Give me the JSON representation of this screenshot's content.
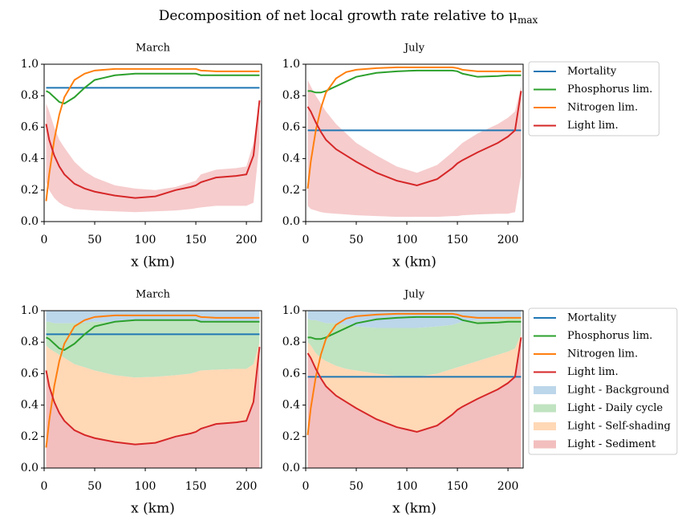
{
  "title": "Decomposition of net local growth rate relative to μ",
  "title_subscript": "max",
  "chart_data": [
    {
      "type": "line",
      "title": "March",
      "xlabel": "x (km)",
      "x": [
        2,
        5,
        10,
        15,
        20,
        30,
        40,
        50,
        70,
        90,
        110,
        130,
        145,
        150,
        155,
        170,
        190,
        200,
        207,
        213
      ],
      "xlim": [
        0,
        215
      ],
      "xticks": [
        0,
        50,
        100,
        150,
        200
      ],
      "ylim": [
        0,
        1
      ],
      "yticks": [
        {
          "value": 0,
          "label": "0.0"
        },
        0.2,
        0.4,
        0.6,
        0.8,
        {
          "value": 1,
          "label": "1.0"
        }
      ],
      "band": {
        "color": "#f6cccd",
        "lower": [
          0.25,
          0.2,
          0.15,
          0.12,
          0.1,
          0.08,
          0.075,
          0.07,
          0.065,
          0.06,
          0.065,
          0.07,
          0.08,
          0.085,
          0.09,
          0.1,
          0.1,
          0.1,
          0.12,
          0.5
        ],
        "upper": [
          0.75,
          0.7,
          0.6,
          0.52,
          0.47,
          0.38,
          0.32,
          0.28,
          0.23,
          0.21,
          0.2,
          0.22,
          0.25,
          0.26,
          0.3,
          0.33,
          0.34,
          0.35,
          0.5,
          0.78
        ]
      },
      "series": [
        {
          "name": "Mortality",
          "color": "#1f77b4",
          "values": [
            0.85,
            0.85,
            0.85,
            0.85,
            0.85,
            0.85,
            0.85,
            0.85,
            0.85,
            0.85,
            0.85,
            0.85,
            0.85,
            0.85,
            0.85,
            0.85,
            0.85,
            0.85,
            0.85,
            0.85
          ]
        },
        {
          "name": "Phosphorus lim.",
          "color": "#2ca02c",
          "values": [
            0.83,
            0.82,
            0.79,
            0.76,
            0.75,
            0.79,
            0.85,
            0.9,
            0.93,
            0.94,
            0.94,
            0.94,
            0.94,
            0.94,
            0.93,
            0.93,
            0.93,
            0.93,
            0.93,
            0.93
          ]
        },
        {
          "name": "Nitrogen lim.",
          "color": "#ff7f0e",
          "values": [
            0.13,
            0.3,
            0.52,
            0.68,
            0.79,
            0.9,
            0.94,
            0.96,
            0.97,
            0.97,
            0.97,
            0.97,
            0.97,
            0.97,
            0.96,
            0.955,
            0.955,
            0.955,
            0.955,
            0.955
          ]
        },
        {
          "name": "Light lim.",
          "color": "#d62728",
          "values": [
            0.62,
            0.52,
            0.42,
            0.35,
            0.3,
            0.24,
            0.21,
            0.19,
            0.165,
            0.15,
            0.16,
            0.2,
            0.22,
            0.23,
            0.25,
            0.28,
            0.29,
            0.3,
            0.42,
            0.77
          ]
        }
      ]
    },
    {
      "type": "line",
      "title": "July",
      "xlabel": "x (km)",
      "legend": "outside right",
      "x": [
        2,
        5,
        10,
        15,
        20,
        30,
        40,
        50,
        70,
        90,
        110,
        130,
        145,
        150,
        155,
        170,
        190,
        200,
        207,
        213
      ],
      "xlim": [
        0,
        215
      ],
      "xticks": [
        0,
        50,
        100,
        150,
        200
      ],
      "ylim": [
        0,
        1
      ],
      "yticks": [
        {
          "value": 0,
          "label": "0.0"
        },
        0.2,
        0.4,
        0.6,
        0.8,
        {
          "value": 1,
          "label": "1.0"
        }
      ],
      "band": {
        "color": "#f6cccd",
        "lower": [
          0.1,
          0.08,
          0.07,
          0.06,
          0.055,
          0.05,
          0.045,
          0.04,
          0.035,
          0.03,
          0.03,
          0.03,
          0.035,
          0.035,
          0.04,
          0.045,
          0.05,
          0.05,
          0.06,
          0.3
        ],
        "upper": [
          0.9,
          0.86,
          0.8,
          0.75,
          0.7,
          0.62,
          0.56,
          0.5,
          0.42,
          0.35,
          0.31,
          0.36,
          0.44,
          0.47,
          0.5,
          0.56,
          0.62,
          0.66,
          0.7,
          0.86
        ]
      },
      "series": [
        {
          "name": "Mortality",
          "color": "#1f77b4",
          "values": [
            0.58,
            0.58,
            0.58,
            0.58,
            0.58,
            0.58,
            0.58,
            0.58,
            0.58,
            0.58,
            0.58,
            0.58,
            0.58,
            0.58,
            0.58,
            0.58,
            0.58,
            0.58,
            0.58,
            0.58
          ]
        },
        {
          "name": "Phosphorus lim.",
          "color": "#2ca02c",
          "values": [
            0.83,
            0.83,
            0.82,
            0.82,
            0.83,
            0.86,
            0.89,
            0.92,
            0.945,
            0.955,
            0.96,
            0.96,
            0.96,
            0.955,
            0.94,
            0.92,
            0.925,
            0.93,
            0.93,
            0.93
          ]
        },
        {
          "name": "Nitrogen lim.",
          "color": "#ff7f0e",
          "values": [
            0.21,
            0.38,
            0.58,
            0.72,
            0.82,
            0.91,
            0.95,
            0.965,
            0.975,
            0.98,
            0.98,
            0.98,
            0.98,
            0.975,
            0.965,
            0.955,
            0.955,
            0.955,
            0.955,
            0.955
          ]
        },
        {
          "name": "Light lim.",
          "color": "#d62728",
          "values": [
            0.73,
            0.7,
            0.63,
            0.57,
            0.52,
            0.46,
            0.42,
            0.38,
            0.31,
            0.26,
            0.23,
            0.27,
            0.34,
            0.37,
            0.39,
            0.44,
            0.5,
            0.54,
            0.58,
            0.83
          ]
        }
      ]
    },
    {
      "type": "line",
      "title": "March",
      "xlabel": "x (km)",
      "x": [
        2,
        5,
        10,
        15,
        20,
        30,
        40,
        50,
        70,
        90,
        110,
        130,
        145,
        150,
        155,
        170,
        190,
        200,
        207,
        213
      ],
      "xlim": [
        0,
        215
      ],
      "xticks": [
        0,
        50,
        100,
        150,
        200
      ],
      "ylim": [
        0,
        1
      ],
      "yticks": [
        {
          "value": 0,
          "label": "0.0"
        },
        0.2,
        0.4,
        0.6,
        0.8,
        {
          "value": 1,
          "label": "1.0"
        }
      ],
      "stacked_areas": [
        {
          "name": "Light - Sediment",
          "color": "#f3bebe",
          "values": [
            0.62,
            0.52,
            0.42,
            0.35,
            0.3,
            0.24,
            0.21,
            0.19,
            0.165,
            0.15,
            0.16,
            0.2,
            0.22,
            0.23,
            0.25,
            0.28,
            0.29,
            0.3,
            0.42,
            0.77
          ]
        },
        {
          "name": "Light - Self-shading",
          "color": "#ffd8b6",
          "values": [
            0.16,
            0.24,
            0.32,
            0.37,
            0.4,
            0.42,
            0.43,
            0.43,
            0.425,
            0.425,
            0.42,
            0.39,
            0.38,
            0.38,
            0.37,
            0.345,
            0.34,
            0.33,
            0.24,
            0.03
          ]
        },
        {
          "name": "Light - Daily cycle",
          "color": "#c0e3c0",
          "values": [
            0.15,
            0.17,
            0.18,
            0.2,
            0.22,
            0.26,
            0.285,
            0.31,
            0.34,
            0.36,
            0.355,
            0.345,
            0.335,
            0.325,
            0.31,
            0.305,
            0.3,
            0.3,
            0.27,
            0.13
          ]
        },
        {
          "name": "Light - Background",
          "color": "#bcd6ea",
          "values": [
            0.07,
            0.07,
            0.08,
            0.08,
            0.08,
            0.08,
            0.075,
            0.07,
            0.07,
            0.065,
            0.065,
            0.065,
            0.065,
            0.065,
            0.07,
            0.07,
            0.07,
            0.07,
            0.07,
            0.07
          ]
        }
      ],
      "series": [
        {
          "name": "Mortality",
          "color": "#1f77b4",
          "values": [
            0.85,
            0.85,
            0.85,
            0.85,
            0.85,
            0.85,
            0.85,
            0.85,
            0.85,
            0.85,
            0.85,
            0.85,
            0.85,
            0.85,
            0.85,
            0.85,
            0.85,
            0.85,
            0.85,
            0.85
          ]
        },
        {
          "name": "Phosphorus lim.",
          "color": "#2ca02c",
          "values": [
            0.83,
            0.82,
            0.79,
            0.76,
            0.75,
            0.79,
            0.85,
            0.9,
            0.93,
            0.94,
            0.94,
            0.94,
            0.94,
            0.94,
            0.93,
            0.93,
            0.93,
            0.93,
            0.93,
            0.93
          ]
        },
        {
          "name": "Nitrogen lim.",
          "color": "#ff7f0e",
          "values": [
            0.13,
            0.3,
            0.52,
            0.68,
            0.79,
            0.9,
            0.94,
            0.96,
            0.97,
            0.97,
            0.97,
            0.97,
            0.97,
            0.97,
            0.96,
            0.955,
            0.955,
            0.955,
            0.955,
            0.955
          ]
        },
        {
          "name": "Light lim.",
          "color": "#d62728",
          "values": [
            0.62,
            0.52,
            0.42,
            0.35,
            0.3,
            0.24,
            0.21,
            0.19,
            0.165,
            0.15,
            0.16,
            0.2,
            0.22,
            0.23,
            0.25,
            0.28,
            0.29,
            0.3,
            0.42,
            0.77
          ]
        }
      ]
    },
    {
      "type": "line",
      "title": "July",
      "xlabel": "x (km)",
      "legend": "outside right",
      "x": [
        2,
        5,
        10,
        15,
        20,
        30,
        40,
        50,
        70,
        90,
        110,
        130,
        145,
        150,
        155,
        170,
        190,
        200,
        207,
        213
      ],
      "xlim": [
        0,
        215
      ],
      "xticks": [
        0,
        50,
        100,
        150,
        200
      ],
      "ylim": [
        0,
        1
      ],
      "yticks": [
        {
          "value": 0,
          "label": "0.0"
        },
        0.2,
        0.4,
        0.6,
        0.8,
        {
          "value": 1,
          "label": "1.0"
        }
      ],
      "stacked_areas": [
        {
          "name": "Light - Sediment",
          "color": "#f3bebe",
          "values": [
            0.73,
            0.7,
            0.63,
            0.57,
            0.52,
            0.46,
            0.42,
            0.38,
            0.31,
            0.26,
            0.23,
            0.27,
            0.34,
            0.37,
            0.39,
            0.44,
            0.5,
            0.54,
            0.58,
            0.83
          ]
        },
        {
          "name": "Light - Self-shading",
          "color": "#ffd8b6",
          "values": [
            0.07,
            0.08,
            0.1,
            0.13,
            0.16,
            0.19,
            0.21,
            0.24,
            0.29,
            0.325,
            0.35,
            0.33,
            0.29,
            0.27,
            0.26,
            0.24,
            0.22,
            0.2,
            0.18,
            0.02
          ]
        },
        {
          "name": "Light - Daily cycle",
          "color": "#c0e3c0",
          "values": [
            0.15,
            0.16,
            0.21,
            0.23,
            0.24,
            0.27,
            0.28,
            0.28,
            0.29,
            0.305,
            0.31,
            0.3,
            0.28,
            0.28,
            0.28,
            0.26,
            0.22,
            0.21,
            0.19,
            0.1
          ]
        },
        {
          "name": "Light - Background",
          "color": "#bcd6ea",
          "values": [
            0.05,
            0.06,
            0.06,
            0.07,
            0.08,
            0.08,
            0.09,
            0.1,
            0.11,
            0.11,
            0.11,
            0.1,
            0.09,
            0.08,
            0.07,
            0.06,
            0.06,
            0.05,
            0.05,
            0.05
          ]
        }
      ],
      "series": [
        {
          "name": "Mortality",
          "color": "#1f77b4",
          "values": [
            0.58,
            0.58,
            0.58,
            0.58,
            0.58,
            0.58,
            0.58,
            0.58,
            0.58,
            0.58,
            0.58,
            0.58,
            0.58,
            0.58,
            0.58,
            0.58,
            0.58,
            0.58,
            0.58,
            0.58
          ]
        },
        {
          "name": "Phosphorus lim.",
          "color": "#2ca02c",
          "values": [
            0.83,
            0.83,
            0.82,
            0.82,
            0.83,
            0.86,
            0.89,
            0.92,
            0.945,
            0.955,
            0.96,
            0.96,
            0.96,
            0.955,
            0.94,
            0.92,
            0.925,
            0.93,
            0.93,
            0.93
          ]
        },
        {
          "name": "Nitrogen lim.",
          "color": "#ff7f0e",
          "values": [
            0.21,
            0.38,
            0.58,
            0.72,
            0.82,
            0.91,
            0.95,
            0.965,
            0.975,
            0.98,
            0.98,
            0.98,
            0.98,
            0.975,
            0.965,
            0.955,
            0.955,
            0.955,
            0.955,
            0.955
          ]
        },
        {
          "name": "Light lim.",
          "color": "#d62728",
          "values": [
            0.73,
            0.7,
            0.63,
            0.57,
            0.52,
            0.46,
            0.42,
            0.38,
            0.31,
            0.26,
            0.23,
            0.27,
            0.34,
            0.37,
            0.39,
            0.44,
            0.5,
            0.54,
            0.58,
            0.83
          ]
        }
      ]
    }
  ]
}
